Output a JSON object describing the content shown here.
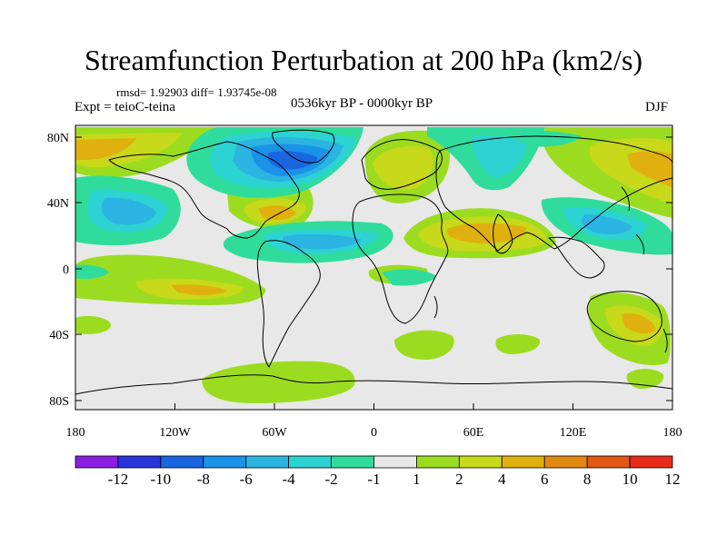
{
  "title": "Streamfunction Perturbation at 200 hPa (km2/s)",
  "stats": "rmsd= 1.92903 diff= 1.93745e-08",
  "experiment": "Expt = teioC-teina",
  "period": "0536kyr BP - 0000kyr BP",
  "season": "DJF",
  "y_ticks": [
    "80N",
    "40N",
    "0",
    "40S",
    "80S"
  ],
  "x_ticks": [
    "180",
    "120W",
    "60W",
    "0",
    "60E",
    "120E",
    "180"
  ],
  "colorbar": {
    "labels": [
      "-12",
      "-10",
      "-8",
      "-6",
      "-4",
      "-2",
      "-1",
      "1",
      "2",
      "4",
      "6",
      "8",
      "10",
      "12"
    ],
    "colors": [
      "#8b1de0",
      "#2a34d8",
      "#1a66e0",
      "#1a92e8",
      "#2bb4e2",
      "#2dd2d2",
      "#2fdc9c",
      "#e8e8e8",
      "#9cdc20",
      "#c8d81a",
      "#e0b00e",
      "#e08a12",
      "#e05814",
      "#e82a18"
    ]
  },
  "colors": {
    "background": "#e8e8e8",
    "coast": "#000000"
  }
}
